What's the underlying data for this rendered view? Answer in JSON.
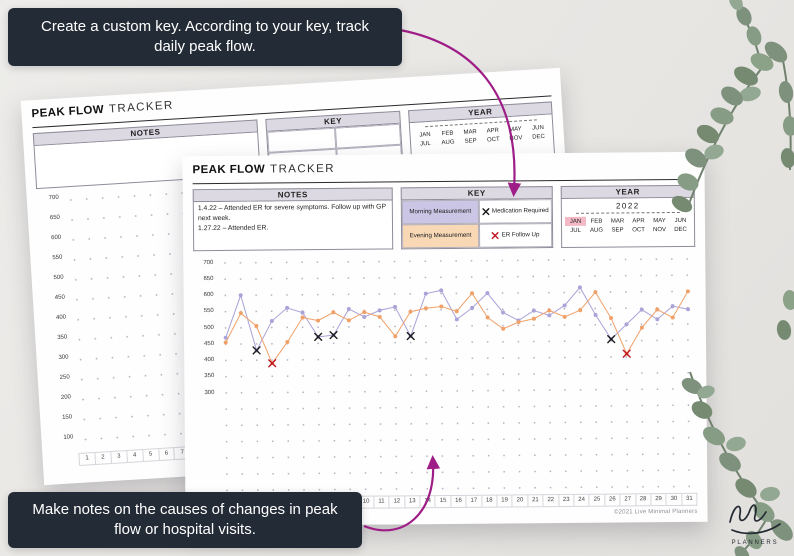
{
  "banners": {
    "top": "Create a custom key. According to your key, track daily peak flow.",
    "bottom": "Make notes on the causes of changes in peak flow or hospital visits."
  },
  "sheet": {
    "title_bold": "PEAK FLOW",
    "title_regular": "TRACKER",
    "notes": {
      "header": "NOTES",
      "lines": [
        "1.4.22 – Attended ER for severe symptoms. Follow up with GP next week.",
        "1.27.22 – Attended ER."
      ]
    },
    "key": {
      "header": "KEY",
      "items": [
        {
          "type": "swatch",
          "label": "Morning Measurement",
          "bg": "#cbc6e5"
        },
        {
          "type": "symbol",
          "label": "Medication Required",
          "symbol": "✕",
          "color": "#1b1b1b"
        },
        {
          "type": "swatch",
          "label": "Evening Measurement",
          "bg": "#f8d8b5"
        },
        {
          "type": "symbol",
          "label": "ER Follow Up",
          "symbol": "✕",
          "color": "#c11622"
        }
      ]
    },
    "year": {
      "header": "YEAR",
      "value": "2022",
      "months": [
        "JAN",
        "FEB",
        "MAR",
        "APR",
        "MAY",
        "JUN",
        "JUL",
        "AUG",
        "SEP",
        "OCT",
        "NOV",
        "DEC"
      ],
      "highlighted_month": "JAN",
      "highlight_color": "#f3b9c5"
    },
    "copyright": "©2021 Live Minimal Planners"
  },
  "back_sheet": {
    "title_bold": "PEAK FLOW",
    "title_regular": "TRACKER",
    "notes_header": "NOTES",
    "key_header": "KEY",
    "year_header": "YEAR",
    "y_ticks": [
      700,
      650,
      600,
      550,
      500,
      450,
      400,
      350,
      300,
      250,
      200,
      150,
      100
    ]
  },
  "chart_data": {
    "type": "line",
    "x": [
      1,
      2,
      3,
      4,
      5,
      6,
      7,
      8,
      9,
      10,
      11,
      12,
      13,
      14,
      15,
      16,
      17,
      18,
      19,
      20,
      21,
      22,
      23,
      24,
      25,
      26,
      27,
      28,
      29,
      30,
      31
    ],
    "x_label_unit": "day of month",
    "y_ticks": [
      700,
      650,
      600,
      550,
      500,
      450,
      400,
      350,
      300
    ],
    "ylim_labeled": [
      300,
      700
    ],
    "grid": "dotted",
    "legend_position": "key box top center",
    "series": [
      {
        "name": "Morning Measurement",
        "color": "#a9a3d8",
        "values": [
          470,
          600,
          430,
          520,
          560,
          545,
          470,
          475,
          555,
          530,
          550,
          560,
          470,
          600,
          610,
          520,
          555,
          600,
          540,
          515,
          545,
          530,
          560,
          615,
          530,
          455,
          500,
          545,
          515,
          555,
          545
        ]
      },
      {
        "name": "Evening Measurement",
        "color": "#f0a169",
        "values": [
          455,
          545,
          505,
          390,
          455,
          530,
          520,
          545,
          520,
          545,
          530,
          470,
          545,
          555,
          560,
          545,
          600,
          525,
          490,
          510,
          520,
          545,
          525,
          545,
          600,
          520,
          410,
          490,
          545,
          520,
          600
        ]
      }
    ],
    "markers": [
      {
        "type": "Medication Required",
        "symbol": "✕",
        "color": "#1b1b1b",
        "points": [
          {
            "day": 3,
            "value": 430
          },
          {
            "day": 7,
            "value": 470
          },
          {
            "day": 8,
            "value": 475
          },
          {
            "day": 13,
            "value": 470
          },
          {
            "day": 26,
            "value": 455
          }
        ]
      },
      {
        "type": "ER Follow Up",
        "symbol": "✕",
        "color": "#c11622",
        "points": [
          {
            "day": 4,
            "value": 390
          },
          {
            "day": 27,
            "value": 410
          }
        ]
      }
    ]
  },
  "logo": {
    "brand": "PLANNERS"
  },
  "colors": {
    "banner_bg": "#232b36",
    "arrow": "#9e1d87",
    "header_cell_bg": "#dcd9e3",
    "morning_swatch": "#cbc6e5",
    "evening_swatch": "#f8d8b5",
    "month_highlight": "#f3b9c5",
    "eucalyptus_green": "#7e917d"
  }
}
